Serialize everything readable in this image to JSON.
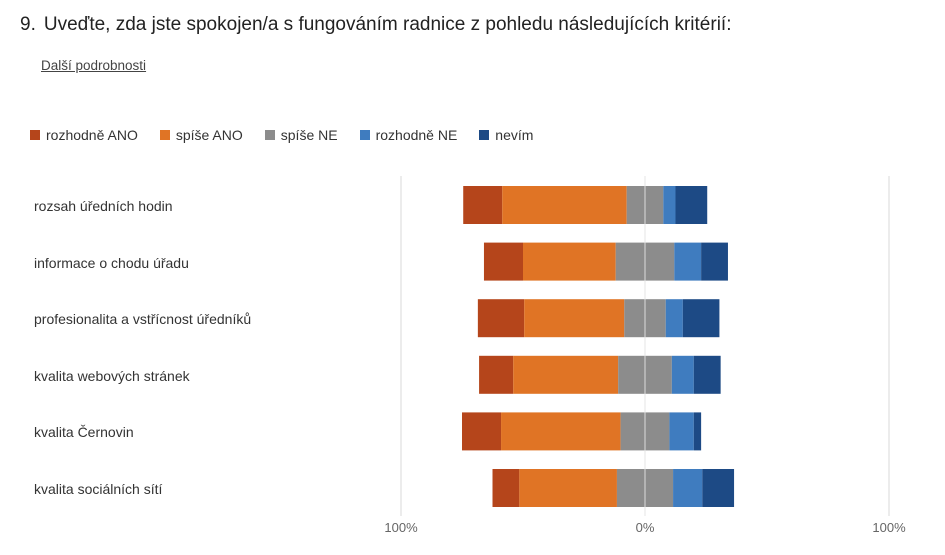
{
  "question": {
    "number": "9.",
    "text": "Uveďte, zda jste spokojen/a s fungováním radnice z pohledu následujících kritérií:"
  },
  "details_link": "Další podrobnosti",
  "colors": {
    "rozhodne_ano": "#B5451B",
    "spise_ano": "#E07425",
    "spise_ne": "#8C8C8C",
    "rozhodne_ne": "#3F7CBF",
    "nevim": "#1D4A85",
    "axis_line": "#d9d9d9"
  },
  "chart_data": {
    "type": "bar",
    "orientation": "horizontal",
    "stacking": "diverging",
    "legend_position": "top-left",
    "grid": true,
    "xlim": [
      -100,
      100
    ],
    "x_tick_labels": [
      "100%",
      "0%",
      "100%"
    ],
    "categories": [
      "rozsah úředních hodin",
      "informace o chodu úřadu",
      "profesionalita a vstřícnost úředníků",
      "kvalita webových stránek",
      "kvalita Černovin",
      "kvalita sociálních sítí"
    ],
    "series": [
      {
        "name": "rozhodně ANO",
        "color_key": "rozhodne_ano",
        "values": [
          16,
          16,
          19,
          14,
          16,
          11
        ]
      },
      {
        "name": "spíše ANO",
        "color_key": "spise_ano",
        "values": [
          51,
          38,
          41,
          43,
          49,
          40
        ]
      },
      {
        "name": "spíše NE",
        "color_key": "spise_ne",
        "values": [
          15,
          24,
          17,
          22,
          20,
          23
        ]
      },
      {
        "name": "rozhodně NE",
        "color_key": "rozhodne_ne",
        "values": [
          5,
          11,
          7,
          9,
          10,
          12
        ]
      },
      {
        "name": "nevím",
        "color_key": "nevim",
        "values": [
          13,
          11,
          15,
          11,
          3,
          13
        ]
      }
    ]
  }
}
